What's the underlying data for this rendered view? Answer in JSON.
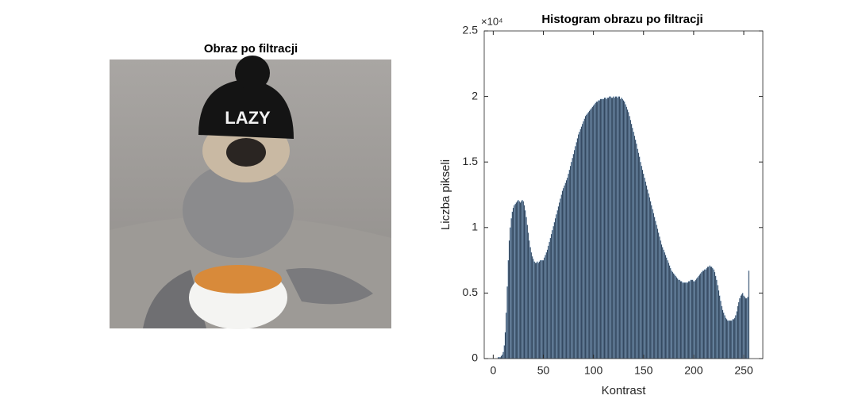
{
  "image_panel": {
    "title": "Obraz po filtracji",
    "hat_text": "LAZY"
  },
  "chart_data": {
    "type": "bar",
    "title": "Histogram obrazu po filtracji",
    "x_label": "Kontrast",
    "y_label": "Liczba pikseli",
    "exponent_label": "×10⁴",
    "x": [
      0,
      1,
      2,
      3,
      4,
      5,
      6,
      7,
      8,
      9,
      10,
      11,
      12,
      13,
      14,
      15,
      16,
      17,
      18,
      19,
      20,
      21,
      22,
      23,
      24,
      25,
      26,
      27,
      28,
      29,
      30,
      31,
      32,
      33,
      34,
      35,
      36,
      37,
      38,
      39,
      40,
      41,
      42,
      43,
      44,
      45,
      46,
      47,
      48,
      49,
      50,
      51,
      52,
      53,
      54,
      55,
      56,
      57,
      58,
      59,
      60,
      61,
      62,
      63,
      64,
      65,
      66,
      67,
      68,
      69,
      70,
      71,
      72,
      73,
      74,
      75,
      76,
      77,
      78,
      79,
      80,
      81,
      82,
      83,
      84,
      85,
      86,
      87,
      88,
      89,
      90,
      91,
      92,
      93,
      94,
      95,
      96,
      97,
      98,
      99,
      100,
      101,
      102,
      103,
      104,
      105,
      106,
      107,
      108,
      109,
      110,
      111,
      112,
      113,
      114,
      115,
      116,
      117,
      118,
      119,
      120,
      121,
      122,
      123,
      124,
      125,
      126,
      127,
      128,
      129,
      130,
      131,
      132,
      133,
      134,
      135,
      136,
      137,
      138,
      139,
      140,
      141,
      142,
      143,
      144,
      145,
      146,
      147,
      148,
      149,
      150,
      151,
      152,
      153,
      154,
      155,
      156,
      157,
      158,
      159,
      160,
      161,
      162,
      163,
      164,
      165,
      166,
      167,
      168,
      169,
      170,
      171,
      172,
      173,
      174,
      175,
      176,
      177,
      178,
      179,
      180,
      181,
      182,
      183,
      184,
      185,
      186,
      187,
      188,
      189,
      190,
      191,
      192,
      193,
      194,
      195,
      196,
      197,
      198,
      199,
      200,
      201,
      202,
      203,
      204,
      205,
      206,
      207,
      208,
      209,
      210,
      211,
      212,
      213,
      214,
      215,
      216,
      217,
      218,
      219,
      220,
      221,
      222,
      223,
      224,
      225,
      226,
      227,
      228,
      229,
      230,
      231,
      232,
      233,
      234,
      235,
      236,
      237,
      238,
      239,
      240,
      241,
      242,
      243,
      244,
      245,
      246,
      247,
      248,
      249,
      250,
      251,
      252,
      253,
      254,
      255
    ],
    "values": [
      0,
      0,
      0,
      0,
      0,
      0.01,
      0.01,
      0.01,
      0.02,
      0.03,
      0.05,
      0.1,
      0.2,
      0.35,
      0.55,
      0.75,
      0.9,
      1.0,
      1.07,
      1.12,
      1.15,
      1.17,
      1.18,
      1.19,
      1.2,
      1.21,
      1.2,
      1.19,
      1.2,
      1.21,
      1.2,
      1.17,
      1.13,
      1.08,
      1.02,
      0.96,
      0.9,
      0.85,
      0.81,
      0.78,
      0.76,
      0.74,
      0.73,
      0.73,
      0.74,
      0.73,
      0.74,
      0.75,
      0.75,
      0.75,
      0.75,
      0.77,
      0.79,
      0.81,
      0.83,
      0.86,
      0.89,
      0.92,
      0.95,
      0.98,
      1.01,
      1.04,
      1.07,
      1.1,
      1.13,
      1.16,
      1.19,
      1.22,
      1.25,
      1.28,
      1.3,
      1.32,
      1.34,
      1.36,
      1.38,
      1.41,
      1.44,
      1.47,
      1.5,
      1.53,
      1.56,
      1.59,
      1.62,
      1.65,
      1.68,
      1.71,
      1.73,
      1.75,
      1.77,
      1.79,
      1.81,
      1.83,
      1.85,
      1.86,
      1.87,
      1.88,
      1.89,
      1.9,
      1.91,
      1.92,
      1.93,
      1.94,
      1.95,
      1.96,
      1.96,
      1.97,
      1.97,
      1.98,
      1.98,
      1.98,
      1.98,
      1.99,
      1.99,
      1.98,
      1.99,
      1.99,
      2.0,
      2.0,
      1.99,
      1.99,
      2.0,
      1.99,
      2.0,
      2.0,
      1.99,
      2.0,
      2.0,
      1.98,
      1.99,
      1.98,
      1.97,
      1.96,
      1.94,
      1.92,
      1.9,
      1.88,
      1.85,
      1.82,
      1.79,
      1.76,
      1.73,
      1.7,
      1.67,
      1.64,
      1.6,
      1.57,
      1.54,
      1.5,
      1.47,
      1.44,
      1.41,
      1.38,
      1.35,
      1.32,
      1.29,
      1.26,
      1.23,
      1.2,
      1.17,
      1.14,
      1.11,
      1.08,
      1.05,
      1.02,
      0.99,
      0.96,
      0.93,
      0.9,
      0.87,
      0.85,
      0.83,
      0.81,
      0.79,
      0.77,
      0.75,
      0.73,
      0.71,
      0.69,
      0.67,
      0.66,
      0.65,
      0.64,
      0.63,
      0.62,
      0.61,
      0.6,
      0.6,
      0.59,
      0.59,
      0.58,
      0.58,
      0.58,
      0.58,
      0.58,
      0.58,
      0.59,
      0.59,
      0.6,
      0.6,
      0.6,
      0.59,
      0.59,
      0.6,
      0.61,
      0.62,
      0.63,
      0.64,
      0.65,
      0.66,
      0.67,
      0.67,
      0.68,
      0.68,
      0.69,
      0.7,
      0.7,
      0.71,
      0.7,
      0.7,
      0.69,
      0.68,
      0.66,
      0.63,
      0.6,
      0.56,
      0.52,
      0.48,
      0.44,
      0.4,
      0.37,
      0.35,
      0.33,
      0.31,
      0.3,
      0.29,
      0.29,
      0.29,
      0.29,
      0.29,
      0.3,
      0.3,
      0.31,
      0.33,
      0.36,
      0.4,
      0.43,
      0.46,
      0.48,
      0.49,
      0.5,
      0.48,
      0.47,
      0.46,
      0.46,
      0.47,
      0.67
    ],
    "color": "#0d1b2e",
    "edge_color": "#8fb8de",
    "xlim": [
      -9,
      269
    ],
    "ylim": [
      0,
      2.5
    ],
    "xticks": [
      0,
      50,
      100,
      150,
      200,
      250
    ],
    "yticks": [
      0,
      0.5,
      1,
      1.5,
      2,
      2.5
    ],
    "grid": false
  }
}
